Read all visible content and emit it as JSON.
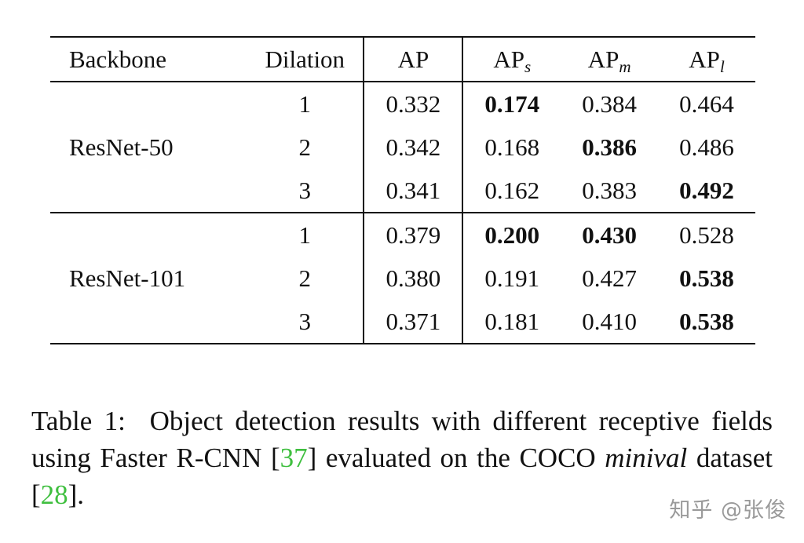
{
  "table": {
    "headers": {
      "backbone": "Backbone",
      "dilation": "Dilation",
      "ap": "AP",
      "ap_s_base": "AP",
      "ap_s_sub": "s",
      "ap_m_base": "AP",
      "ap_m_sub": "m",
      "ap_l_base": "AP",
      "ap_l_sub": "l"
    },
    "groups": [
      {
        "backbone": "ResNet-50",
        "rows": [
          {
            "dilation": "1",
            "ap": "0.332",
            "ap_s": "0.174",
            "ap_m": "0.384",
            "ap_l": "0.464",
            "bold": [
              "ap_s"
            ]
          },
          {
            "dilation": "2",
            "ap": "0.342",
            "ap_s": "0.168",
            "ap_m": "0.386",
            "ap_l": "0.486",
            "bold": [
              "ap_m"
            ]
          },
          {
            "dilation": "3",
            "ap": "0.341",
            "ap_s": "0.162",
            "ap_m": "0.383",
            "ap_l": "0.492",
            "bold": [
              "ap_l"
            ]
          }
        ]
      },
      {
        "backbone": "ResNet-101",
        "rows": [
          {
            "dilation": "1",
            "ap": "0.379",
            "ap_s": "0.200",
            "ap_m": "0.430",
            "ap_l": "0.528",
            "bold": [
              "ap_s",
              "ap_m"
            ]
          },
          {
            "dilation": "2",
            "ap": "0.380",
            "ap_s": "0.191",
            "ap_m": "0.427",
            "ap_l": "0.538",
            "bold": [
              "ap_l"
            ]
          },
          {
            "dilation": "3",
            "ap": "0.371",
            "ap_s": "0.181",
            "ap_m": "0.410",
            "ap_l": "0.538",
            "bold": [
              "ap_l"
            ]
          }
        ]
      }
    ]
  },
  "caption": {
    "prefix": "Table 1:",
    "text_part1": "Object detection results with different receptive fields using Faster R-CNN [",
    "cite1": "37",
    "text_part2": "] evaluated on the COCO ",
    "italic_word": "minival",
    "text_part3": " dataset [",
    "cite2": "28",
    "text_part4": "]."
  },
  "watermark": "知乎 @张俊",
  "colors": {
    "citation_link": "#3fbf3f",
    "text": "#111111",
    "watermark": "#9a9a9a"
  }
}
